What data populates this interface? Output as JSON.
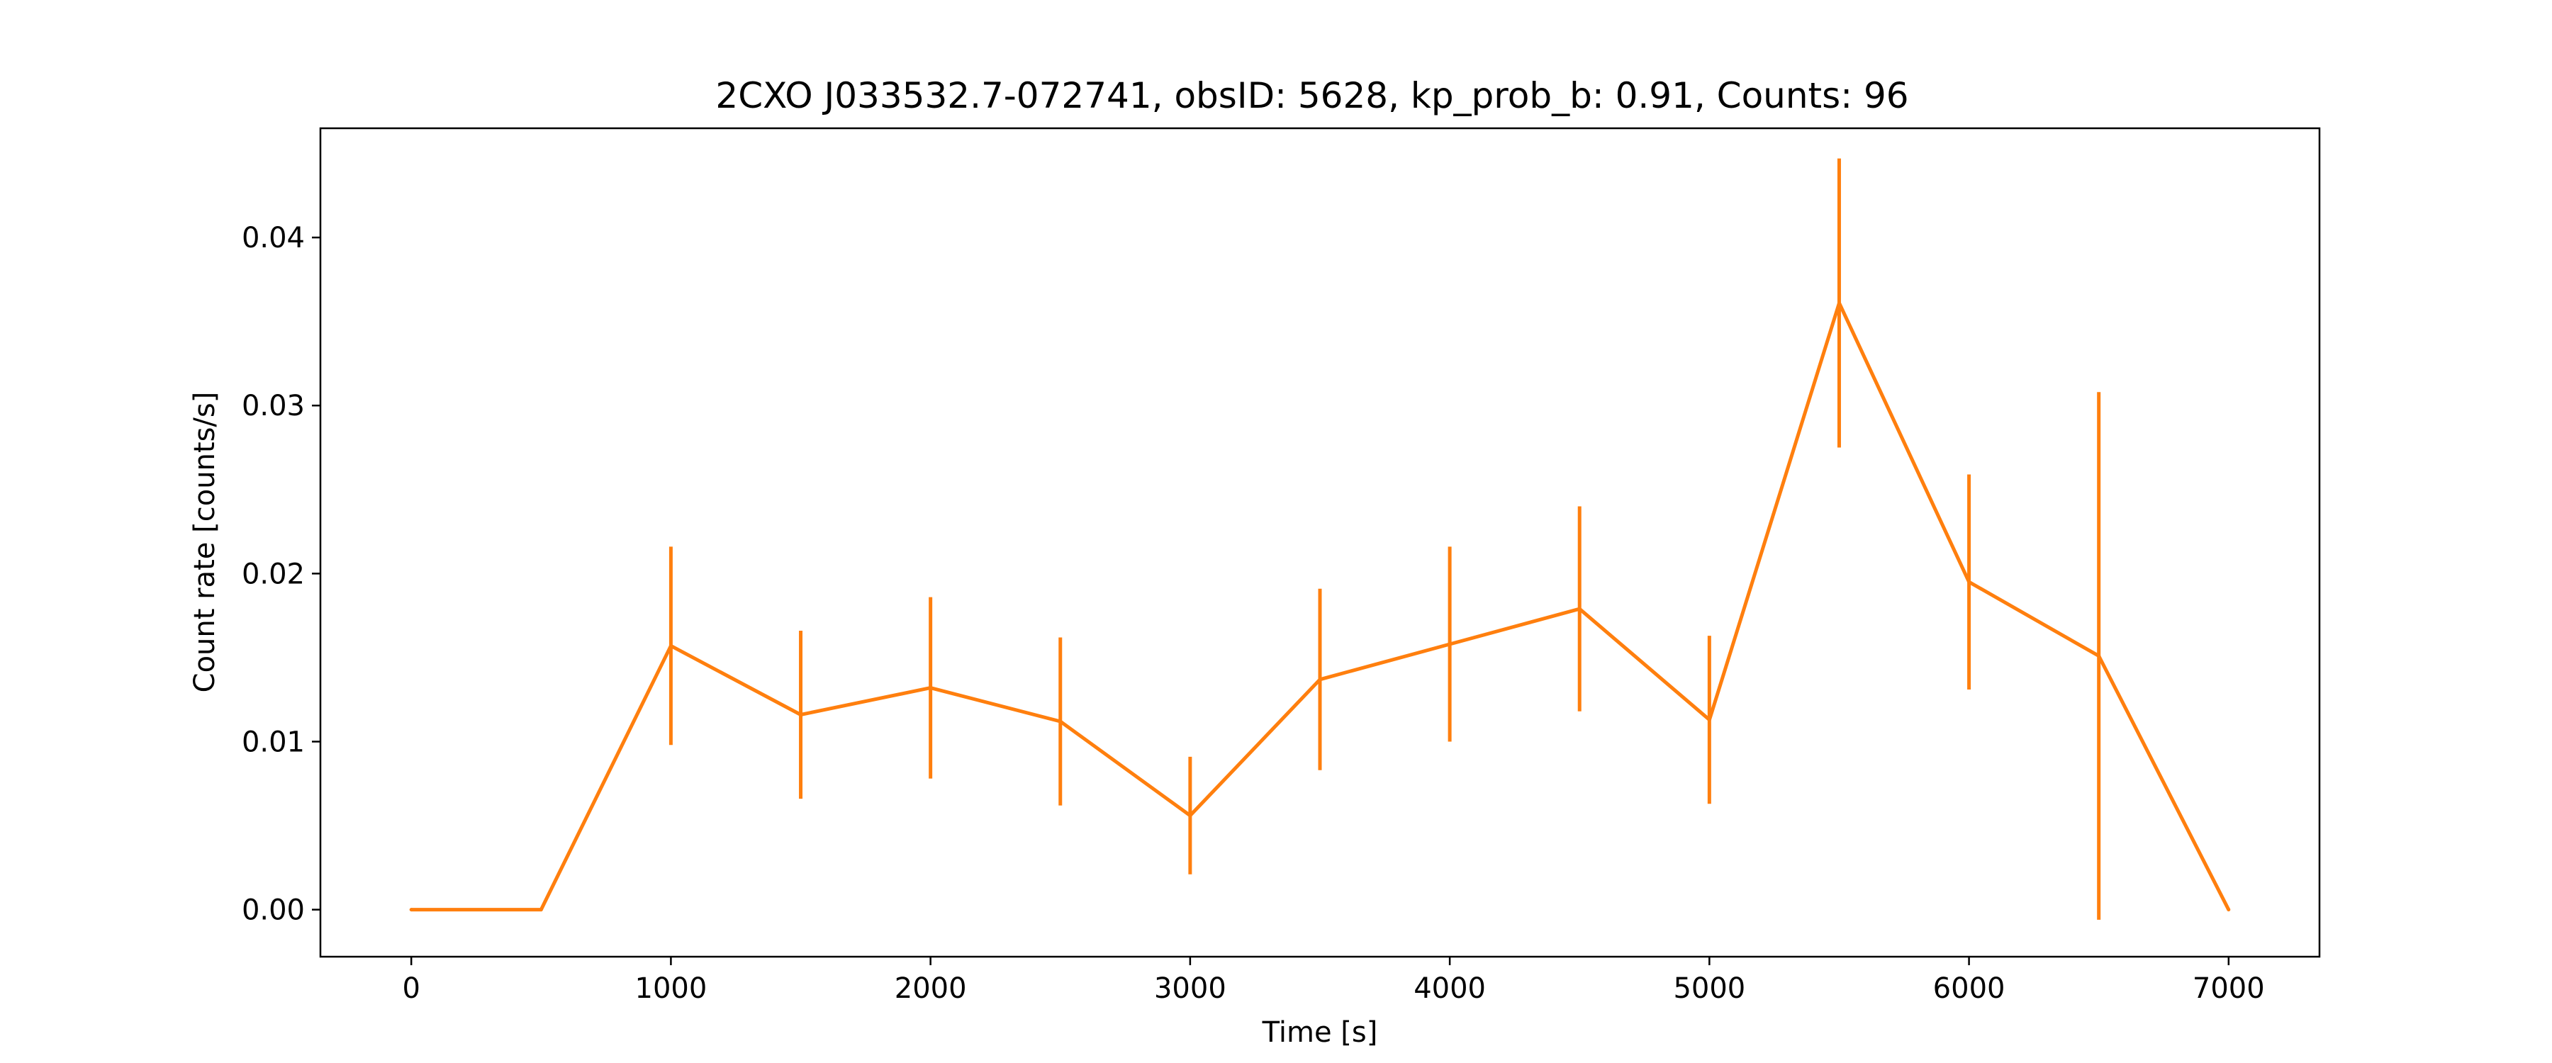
{
  "chart_data": {
    "type": "line",
    "title": "2CXO J033532.7-072741, obsID: 5628, kp_prob_b: 0.91, Counts: 96",
    "xlabel": "Time [s]",
    "ylabel": "Count rate [counts/s]",
    "xlim": [
      -350,
      7350
    ],
    "ylim": [
      -0.0028,
      0.0465
    ],
    "xticks": [
      0,
      1000,
      2000,
      3000,
      4000,
      5000,
      6000,
      7000
    ],
    "xtick_labels": [
      "0",
      "1000",
      "2000",
      "3000",
      "4000",
      "5000",
      "6000",
      "7000"
    ],
    "yticks": [
      0.0,
      0.01,
      0.02,
      0.03,
      0.04
    ],
    "ytick_labels": [
      "0.00",
      "0.01",
      "0.02",
      "0.03",
      "0.04"
    ],
    "grid": false,
    "series": [
      {
        "color": "#ff7f0e",
        "points": [
          {
            "x": 0,
            "y": 0.0,
            "err": 0.0
          },
          {
            "x": 500,
            "y": 0.0,
            "err": 0.0
          },
          {
            "x": 1000,
            "y": 0.0157,
            "err": 0.0059
          },
          {
            "x": 1500,
            "y": 0.0116,
            "err": 0.005
          },
          {
            "x": 2000,
            "y": 0.0132,
            "err": 0.0054
          },
          {
            "x": 2500,
            "y": 0.0112,
            "err": 0.005
          },
          {
            "x": 3000,
            "y": 0.0056,
            "err": 0.0035
          },
          {
            "x": 3500,
            "y": 0.0137,
            "err": 0.0054
          },
          {
            "x": 4000,
            "y": 0.0158,
            "err": 0.0058
          },
          {
            "x": 4500,
            "y": 0.0179,
            "err": 0.0061
          },
          {
            "x": 5000,
            "y": 0.0113,
            "err": 0.005
          },
          {
            "x": 5500,
            "y": 0.0361,
            "err": 0.0086
          },
          {
            "x": 6000,
            "y": 0.0195,
            "err": 0.0064
          },
          {
            "x": 6500,
            "y": 0.0151,
            "err": 0.0157
          },
          {
            "x": 7000,
            "y": 0.0,
            "err": 0.0
          }
        ]
      }
    ]
  }
}
